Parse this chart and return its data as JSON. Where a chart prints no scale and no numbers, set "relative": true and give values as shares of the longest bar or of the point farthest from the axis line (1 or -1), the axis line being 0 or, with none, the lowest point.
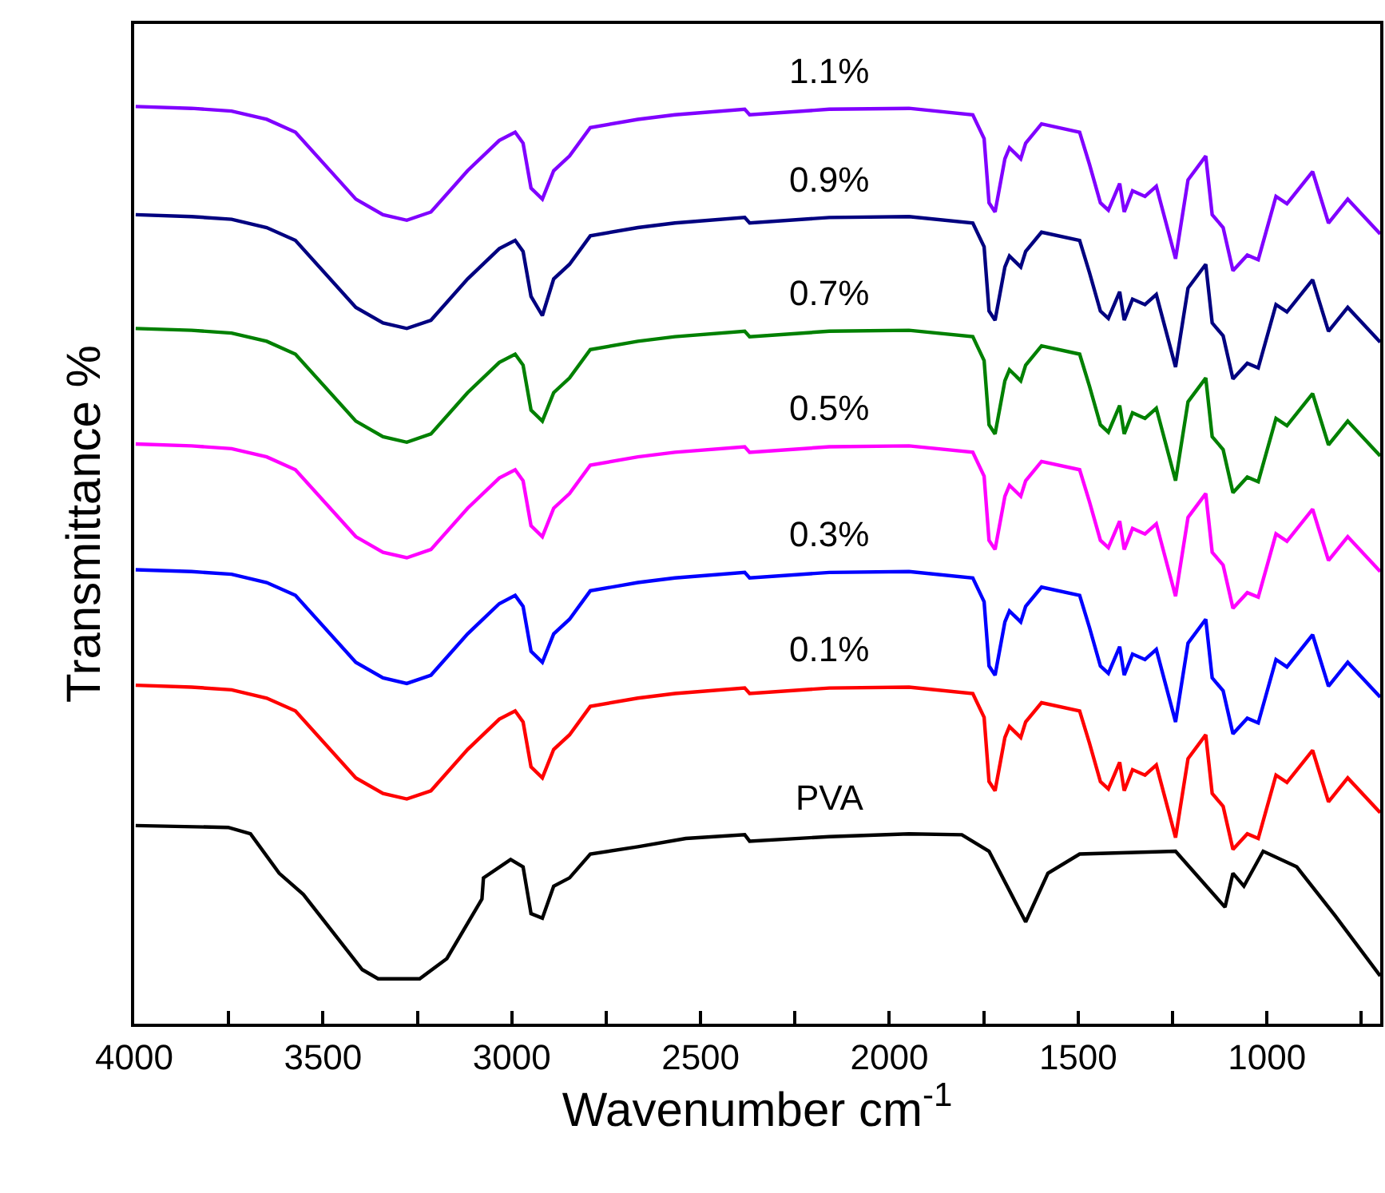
{
  "chart_data": {
    "type": "line",
    "relative": true,
    "xlabel": "Wavenumber cm$^{-1}$",
    "ylabel": "Transmittance %",
    "xlim": [
      4000,
      700
    ],
    "xticks": [
      4000,
      {
        "value": 3750,
        "label": null
      },
      3500,
      {
        "value": 3250,
        "label": null
      },
      3000,
      {
        "value": 2750,
        "label": null
      },
      2500,
      {
        "value": 2250,
        "label": null
      },
      2000,
      {
        "value": 1750,
        "label": null
      },
      1500,
      {
        "value": 1250,
        "label": null
      },
      1000,
      {
        "value": 750,
        "label": null
      }
    ],
    "legend": false,
    "marker": "none",
    "line_style": "solid",
    "x": [
      3996,
      3848,
      3742,
      3649,
      3573,
      3413,
      3341,
      3278,
      3214,
      3117,
      3033,
      2991,
      2970,
      2949,
      2919,
      2889,
      2847,
      2792,
      2666,
      2568,
      2383,
      2370,
      2159,
      1948,
      1779,
      1749,
      1736,
      1720,
      1694,
      1682,
      1652,
      1639,
      1597,
      1496,
      1470,
      1441,
      1420,
      1390,
      1378,
      1356,
      1323,
      1293,
      1242,
      1209,
      1162,
      1145,
      1116,
      1090,
      1052,
      1023,
      976,
      947,
      879,
      837,
      786,
      700
    ],
    "series": [
      {
        "name": "1.1%",
        "color": "#8000ff",
        "values": [
          1.0,
          0.998,
          0.995,
          0.986,
          0.972,
          0.899,
          0.882,
          0.876,
          0.885,
          0.93,
          0.963,
          0.972,
          0.96,
          0.911,
          0.899,
          0.93,
          0.946,
          0.977,
          0.986,
          0.991,
          0.997,
          0.991,
          0.997,
          0.998,
          0.991,
          0.965,
          0.895,
          0.885,
          0.943,
          0.955,
          0.943,
          0.96,
          0.981,
          0.972,
          0.937,
          0.895,
          0.887,
          0.916,
          0.885,
          0.908,
          0.902,
          0.913,
          0.834,
          0.92,
          0.946,
          0.882,
          0.868,
          0.821,
          0.838,
          0.833,
          0.902,
          0.894,
          0.929,
          0.873,
          0.899,
          0.861
        ]
      },
      {
        "name": "0.9%",
        "color": "#000080",
        "values": [
          0.882,
          0.88,
          0.877,
          0.868,
          0.854,
          0.781,
          0.764,
          0.758,
          0.767,
          0.812,
          0.845,
          0.854,
          0.842,
          0.793,
          0.772,
          0.812,
          0.828,
          0.859,
          0.868,
          0.873,
          0.879,
          0.873,
          0.879,
          0.88,
          0.873,
          0.847,
          0.777,
          0.767,
          0.825,
          0.837,
          0.825,
          0.842,
          0.863,
          0.854,
          0.819,
          0.777,
          0.769,
          0.798,
          0.767,
          0.79,
          0.784,
          0.795,
          0.716,
          0.802,
          0.828,
          0.764,
          0.75,
          0.703,
          0.72,
          0.715,
          0.784,
          0.776,
          0.811,
          0.755,
          0.781,
          0.743
        ]
      },
      {
        "name": "0.7%",
        "color": "#008000",
        "values": [
          0.758,
          0.756,
          0.753,
          0.744,
          0.73,
          0.657,
          0.64,
          0.634,
          0.643,
          0.688,
          0.721,
          0.73,
          0.718,
          0.669,
          0.657,
          0.688,
          0.704,
          0.735,
          0.744,
          0.749,
          0.755,
          0.749,
          0.755,
          0.756,
          0.749,
          0.723,
          0.653,
          0.643,
          0.701,
          0.713,
          0.701,
          0.718,
          0.739,
          0.73,
          0.695,
          0.653,
          0.645,
          0.674,
          0.643,
          0.666,
          0.66,
          0.671,
          0.592,
          0.678,
          0.704,
          0.64,
          0.626,
          0.579,
          0.596,
          0.591,
          0.66,
          0.652,
          0.687,
          0.631,
          0.657,
          0.619
        ]
      },
      {
        "name": "0.5%",
        "color": "#ff00ff",
        "values": [
          0.632,
          0.63,
          0.627,
          0.618,
          0.604,
          0.531,
          0.514,
          0.508,
          0.517,
          0.562,
          0.595,
          0.604,
          0.592,
          0.543,
          0.531,
          0.562,
          0.578,
          0.609,
          0.618,
          0.623,
          0.629,
          0.623,
          0.629,
          0.63,
          0.623,
          0.597,
          0.527,
          0.517,
          0.575,
          0.587,
          0.575,
          0.592,
          0.613,
          0.604,
          0.569,
          0.527,
          0.519,
          0.548,
          0.517,
          0.54,
          0.534,
          0.545,
          0.466,
          0.552,
          0.578,
          0.514,
          0.5,
          0.453,
          0.47,
          0.465,
          0.534,
          0.526,
          0.561,
          0.505,
          0.531,
          0.493
        ]
      },
      {
        "name": "0.3%",
        "color": "#0000ff",
        "values": [
          0.495,
          0.493,
          0.49,
          0.481,
          0.467,
          0.394,
          0.377,
          0.371,
          0.38,
          0.425,
          0.458,
          0.467,
          0.455,
          0.406,
          0.394,
          0.425,
          0.441,
          0.472,
          0.481,
          0.486,
          0.492,
          0.486,
          0.492,
          0.493,
          0.486,
          0.46,
          0.39,
          0.38,
          0.438,
          0.45,
          0.438,
          0.455,
          0.476,
          0.467,
          0.432,
          0.39,
          0.382,
          0.411,
          0.38,
          0.403,
          0.397,
          0.408,
          0.329,
          0.415,
          0.441,
          0.377,
          0.363,
          0.316,
          0.333,
          0.328,
          0.397,
          0.389,
          0.424,
          0.368,
          0.394,
          0.356
        ]
      },
      {
        "name": "0.1%",
        "color": "#ff0000",
        "values": [
          0.369,
          0.367,
          0.364,
          0.355,
          0.341,
          0.268,
          0.251,
          0.245,
          0.254,
          0.299,
          0.332,
          0.341,
          0.329,
          0.28,
          0.268,
          0.299,
          0.315,
          0.346,
          0.355,
          0.36,
          0.366,
          0.36,
          0.366,
          0.367,
          0.36,
          0.334,
          0.264,
          0.254,
          0.312,
          0.324,
          0.312,
          0.329,
          0.35,
          0.341,
          0.306,
          0.264,
          0.256,
          0.285,
          0.254,
          0.277,
          0.271,
          0.282,
          0.203,
          0.289,
          0.315,
          0.251,
          0.237,
          0.19,
          0.207,
          0.202,
          0.271,
          0.263,
          0.298,
          0.242,
          0.268,
          0.23
        ]
      },
      {
        "name": "PVA",
        "color": "#000000",
        "x": [
          3996,
          3751,
          3692,
          3616,
          3552,
          3396,
          3354,
          3244,
          3172,
          3079,
          3075,
          3003,
          2970,
          2949,
          2919,
          2889,
          2847,
          2792,
          2666,
          2539,
          2383,
          2370,
          2159,
          1948,
          1808,
          1736,
          1639,
          1580,
          1496,
          1242,
          1111,
          1090,
          1061,
          1010,
          921,
          820,
          700
        ],
        "values": [
          0.216,
          0.214,
          0.207,
          0.164,
          0.141,
          0.059,
          0.049,
          0.049,
          0.071,
          0.136,
          0.159,
          0.179,
          0.171,
          0.12,
          0.115,
          0.15,
          0.159,
          0.185,
          0.193,
          0.202,
          0.206,
          0.199,
          0.204,
          0.207,
          0.206,
          0.188,
          0.111,
          0.164,
          0.185,
          0.188,
          0.127,
          0.164,
          0.15,
          0.188,
          0.171,
          0.118,
          0.052
        ]
      }
    ]
  }
}
